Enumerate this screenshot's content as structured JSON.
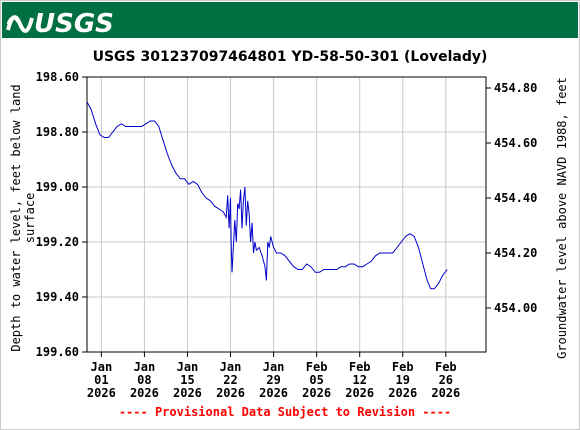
{
  "header": {
    "logo_text": "USGS",
    "background_color": "#006f41"
  },
  "chart_data": {
    "type": "line",
    "title": "USGS 301237097464801 YD-58-50-301 (Lovelady)",
    "ylabel_left": "Depth to water level, feet below land surface",
    "ylabel_right": "Groundwater level above NAVD 1988, feet",
    "footer_note": "---- Provisional Data Subject to Revision ----",
    "y_left": {
      "range": [
        198.6,
        199.6
      ],
      "inverted": true,
      "ticks": [
        "198.60",
        "198.80",
        "199.00",
        "199.20",
        "199.40",
        "199.60"
      ]
    },
    "y_right": {
      "range": [
        454.84,
        453.84
      ],
      "ticks": [
        "454.80",
        "454.60",
        "454.40",
        "454.20",
        "454.00"
      ]
    },
    "x_axis": {
      "range_days": [
        0,
        27.8
      ],
      "ticks": [
        {
          "day": 1,
          "label1": "Jan",
          "label2": "01",
          "label3": "2026"
        },
        {
          "day": 4,
          "label1": "Jan",
          "label2": "08",
          "label3": "2026"
        },
        {
          "day": 7,
          "label1": "Jan",
          "label2": "15",
          "label3": "2026"
        },
        {
          "day": 10,
          "label1": "Jan",
          "label2": "22",
          "label3": "2026"
        },
        {
          "day": 13,
          "label1": "Jan",
          "label2": "29",
          "label3": "2026"
        },
        {
          "day": 16,
          "label1": "Feb",
          "label2": "05",
          "label3": "2026"
        },
        {
          "day": 19,
          "label1": "Feb",
          "label2": "12",
          "label3": "2026"
        },
        {
          "day": 22,
          "label1": "Feb",
          "label2": "19",
          "label3": "2026"
        },
        {
          "day": 25,
          "label1": "Feb",
          "label2": "26",
          "label3": "2026"
        }
      ]
    },
    "grid": true,
    "series_color": "#0000cc",
    "series": [
      {
        "points": [
          [
            0.0,
            198.69
          ],
          [
            0.3,
            198.72
          ],
          [
            0.6,
            198.77
          ],
          [
            0.9,
            198.81
          ],
          [
            1.2,
            198.82
          ],
          [
            1.5,
            198.82
          ],
          [
            1.8,
            198.8
          ],
          [
            2.1,
            198.78
          ],
          [
            2.4,
            198.77
          ],
          [
            2.7,
            198.78
          ],
          [
            3.0,
            198.78
          ],
          [
            3.4,
            198.78
          ],
          [
            3.8,
            198.78
          ],
          [
            4.1,
            198.77
          ],
          [
            4.4,
            198.76
          ],
          [
            4.7,
            198.76
          ],
          [
            5.0,
            198.78
          ],
          [
            5.3,
            198.83
          ],
          [
            5.6,
            198.88
          ],
          [
            5.9,
            198.92
          ],
          [
            6.2,
            198.95
          ],
          [
            6.5,
            198.97
          ],
          [
            6.8,
            198.97
          ],
          [
            7.1,
            198.99
          ],
          [
            7.4,
            198.98
          ],
          [
            7.7,
            198.99
          ],
          [
            8.0,
            199.02
          ],
          [
            8.3,
            199.04
          ],
          [
            8.6,
            199.05
          ],
          [
            8.9,
            199.07
          ],
          [
            9.2,
            199.08
          ],
          [
            9.5,
            199.09
          ],
          [
            9.7,
            199.11
          ],
          [
            9.8,
            199.03
          ],
          [
            9.9,
            199.15
          ],
          [
            10.0,
            199.04
          ],
          [
            10.05,
            199.21
          ],
          [
            10.1,
            199.31
          ],
          [
            10.3,
            199.12
          ],
          [
            10.4,
            199.2
          ],
          [
            10.5,
            199.06
          ],
          [
            10.6,
            199.08
          ],
          [
            10.7,
            199.01
          ],
          [
            10.8,
            199.15
          ],
          [
            10.9,
            199.05
          ],
          [
            11.0,
            199.0
          ],
          [
            11.1,
            199.14
          ],
          [
            11.2,
            199.05
          ],
          [
            11.3,
            199.1
          ],
          [
            11.4,
            199.2
          ],
          [
            11.5,
            199.13
          ],
          [
            11.6,
            199.24
          ],
          [
            11.7,
            199.2
          ],
          [
            11.8,
            199.23
          ],
          [
            12.0,
            199.22
          ],
          [
            12.2,
            199.25
          ],
          [
            12.4,
            199.29
          ],
          [
            12.5,
            199.34
          ],
          [
            12.6,
            199.2
          ],
          [
            12.7,
            199.22
          ],
          [
            12.8,
            199.18
          ],
          [
            13.0,
            199.22
          ],
          [
            13.2,
            199.24
          ],
          [
            13.5,
            199.24
          ],
          [
            13.8,
            199.25
          ],
          [
            14.1,
            199.27
          ],
          [
            14.4,
            199.29
          ],
          [
            14.7,
            199.3
          ],
          [
            15.0,
            199.3
          ],
          [
            15.3,
            199.28
          ],
          [
            15.6,
            199.29
          ],
          [
            15.9,
            199.31
          ],
          [
            16.2,
            199.31
          ],
          [
            16.5,
            199.3
          ],
          [
            16.8,
            199.3
          ],
          [
            17.1,
            199.3
          ],
          [
            17.4,
            199.3
          ],
          [
            17.7,
            199.29
          ],
          [
            18.0,
            199.29
          ],
          [
            18.3,
            199.28
          ],
          [
            18.6,
            199.28
          ],
          [
            18.9,
            199.29
          ],
          [
            19.2,
            199.29
          ],
          [
            19.5,
            199.28
          ],
          [
            19.8,
            199.27
          ],
          [
            20.1,
            199.25
          ],
          [
            20.4,
            199.24
          ],
          [
            20.7,
            199.24
          ],
          [
            21.0,
            199.24
          ],
          [
            21.3,
            199.24
          ],
          [
            21.6,
            199.22
          ],
          [
            21.9,
            199.2
          ],
          [
            22.2,
            199.18
          ],
          [
            22.5,
            199.17
          ],
          [
            22.8,
            199.18
          ],
          [
            23.1,
            199.22
          ],
          [
            23.4,
            199.28
          ],
          [
            23.7,
            199.34
          ],
          [
            23.95,
            199.37
          ],
          [
            24.2,
            199.37
          ],
          [
            24.5,
            199.35
          ],
          [
            24.8,
            199.32
          ],
          [
            25.1,
            199.3
          ]
        ]
      }
    ]
  }
}
